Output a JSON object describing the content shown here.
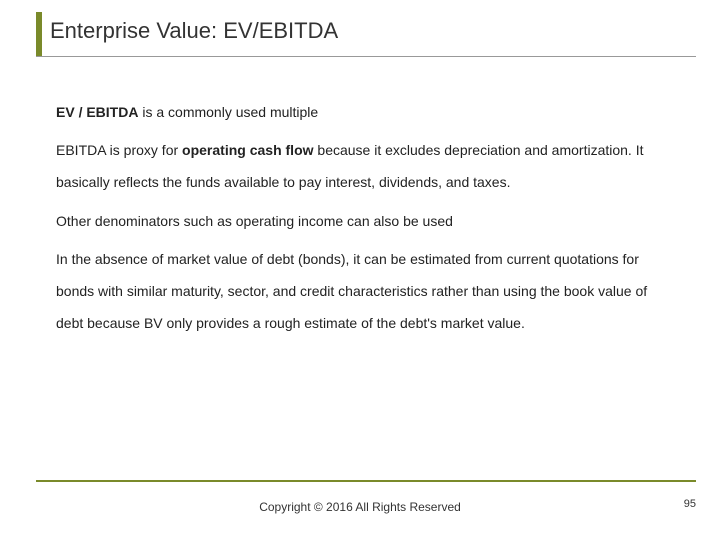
{
  "accent_color": "#7a8a2a",
  "underline_color": "#999999",
  "title": "Enterprise Value: EV/EBITDA",
  "paragraphs": {
    "p1_bold": "EV / EBITDA",
    "p1_rest": " is a commonly used multiple",
    "p2_pre": "EBITDA is proxy for ",
    "p2_bold": "operating cash flow",
    "p2_post": " because it excludes depreciation and amortization. It basically reflects the funds available to pay interest, dividends, and taxes.",
    "p3": "Other denominators such as operating income can also be used",
    "p4": "In the absence of market value of debt (bonds), it can be estimated from current quotations for bonds with similar maturity, sector, and credit characteristics rather than using the book value of debt because BV only provides a rough estimate of the debt's market value."
  },
  "footer": {
    "copyright": "Copyright © 2016 All Rights Reserved",
    "page": "95"
  }
}
